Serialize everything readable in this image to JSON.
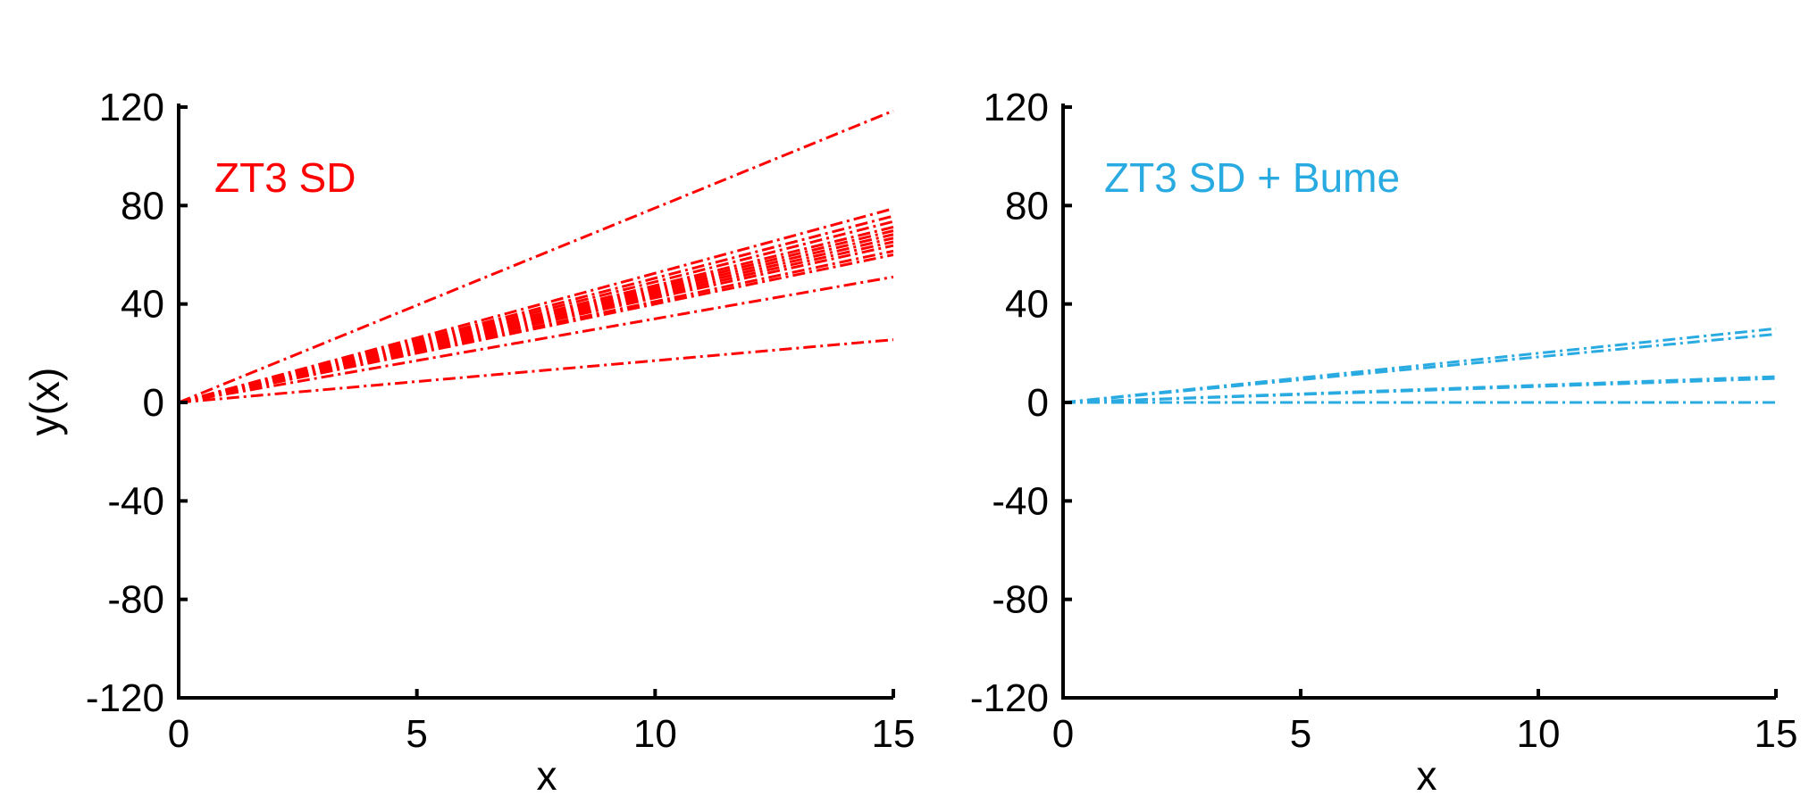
{
  "chart_data": [
    {
      "type": "line",
      "annotation": "ZT3 SD",
      "color": "#ff0000",
      "xlabel": "x",
      "ylabel": "y(x)",
      "xlim": [
        0,
        15
      ],
      "ylim": [
        -120,
        120
      ],
      "xticks": [
        0,
        5,
        10,
        15
      ],
      "yticks": [
        120,
        80,
        40,
        0,
        -40,
        -80,
        -120
      ],
      "series_note": "lines y = slope * x, x from 0 to 15",
      "slopes": [
        7.9,
        5.25,
        5.05,
        4.9,
        4.75,
        4.65,
        4.55,
        4.45,
        4.35,
        4.25,
        4.1,
        4.0,
        3.4,
        1.7
      ]
    },
    {
      "type": "line",
      "annotation": "ZT3 SD + Bume",
      "color": "#29abe2",
      "xlabel": "x",
      "ylabel": "",
      "xlim": [
        0,
        15
      ],
      "ylim": [
        -120,
        120
      ],
      "xticks": [
        0,
        5,
        10,
        15
      ],
      "yticks": [
        120,
        80,
        40,
        0,
        -40,
        -80,
        -120
      ],
      "series_note": "lines y = slope * x, x from 0 to 15",
      "slopes": [
        2.0,
        1.85,
        0.7,
        0.65,
        0.0
      ]
    }
  ]
}
